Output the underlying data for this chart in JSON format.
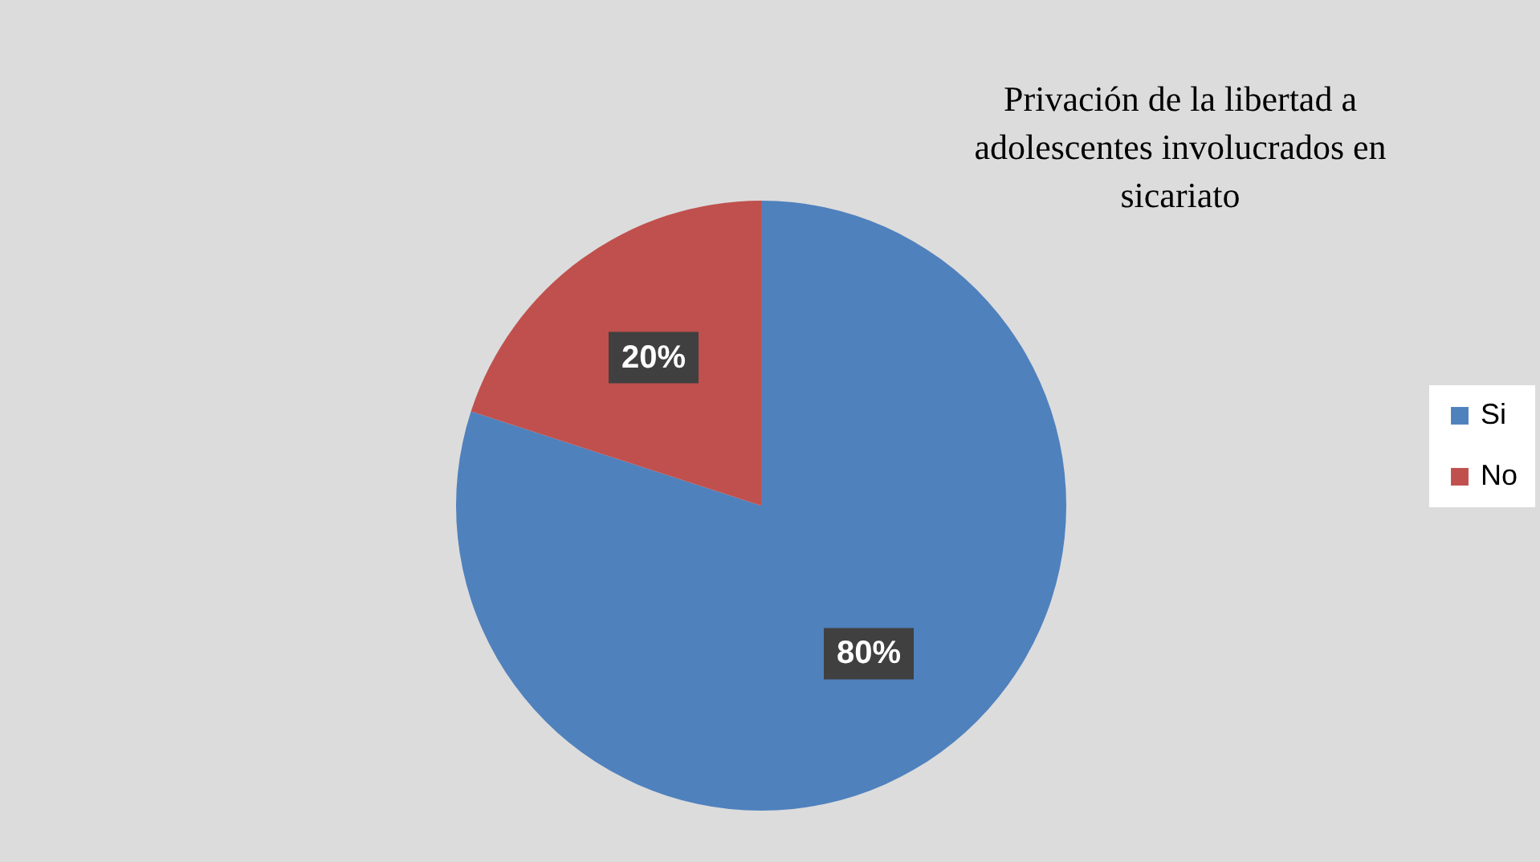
{
  "chart_data": {
    "type": "pie",
    "title": "Privación de la libertad a adolescentes involucrados en sicariato",
    "categories": [
      "Si",
      "No"
    ],
    "values": [
      80,
      20
    ],
    "colors": [
      "#4f81bd",
      "#c0504d"
    ],
    "value_labels": [
      "80%",
      "20%"
    ],
    "legend": "right"
  }
}
